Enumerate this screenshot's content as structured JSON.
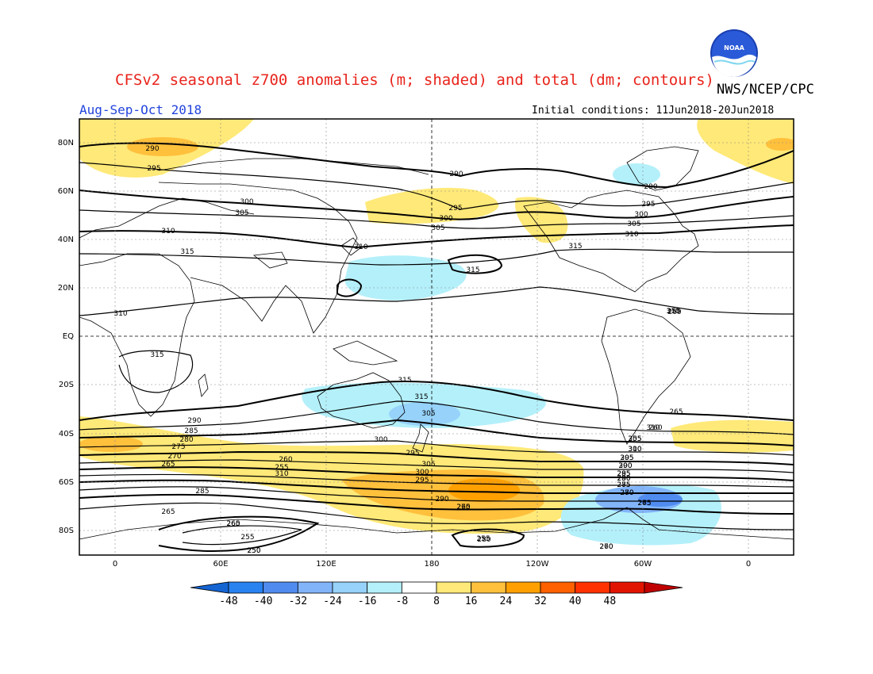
{
  "header": {
    "title": "CFSv2 seasonal z700 anomalies (m; shaded) and total (dm; contours)",
    "agency": "NWS/NCEP/CPC",
    "season": "Aug-Sep-Oct 2018",
    "initial_conditions": "Initial conditions: 11Jun2018-20Jun2018",
    "logo_text": "NOAA"
  },
  "axes": {
    "lat_labels": [
      "80N",
      "60N",
      "40N",
      "20N",
      "EQ",
      "20S",
      "40S",
      "60S",
      "80S"
    ],
    "lon_labels": [
      "0",
      "60E",
      "120E",
      "180",
      "120W",
      "60W",
      "0"
    ]
  },
  "colorbar": {
    "labels": [
      "-48",
      "-40",
      "-32",
      "-24",
      "-16",
      "-8",
      "8",
      "16",
      "24",
      "32",
      "40",
      "48"
    ],
    "colors": [
      "#1464d2",
      "#2882f0",
      "#508cf0",
      "#82b4fa",
      "#96d2fa",
      "#b4f0fa",
      "#ffffff",
      "#ffe978",
      "#ffc03c",
      "#ffa000",
      "#ff6000",
      "#ff3200",
      "#e11400",
      "#c00000"
    ]
  },
  "contour_labels": [
    "290",
    "295",
    "300",
    "305",
    "310",
    "315",
    "290",
    "295",
    "300",
    "305",
    "310",
    "315",
    "290",
    "295",
    "300",
    "305",
    "310",
    "315",
    "310",
    "310",
    "315",
    "315",
    "315",
    "305",
    "300",
    "295",
    "290",
    "285",
    "280",
    "275",
    "270",
    "265",
    "260",
    "255",
    "310",
    "305",
    "300",
    "295",
    "290",
    "285",
    "280",
    "275",
    "260",
    "255",
    "250",
    "265",
    "260",
    "255",
    "310",
    "305",
    "300",
    "295",
    "290",
    "285",
    "280",
    "275",
    "270",
    "265",
    "260",
    "255",
    "310",
    "305",
    "300",
    "295",
    "290",
    "285",
    "280",
    "275",
    "270",
    "265",
    "260",
    "255",
    "250",
    "265",
    "260"
  ]
}
